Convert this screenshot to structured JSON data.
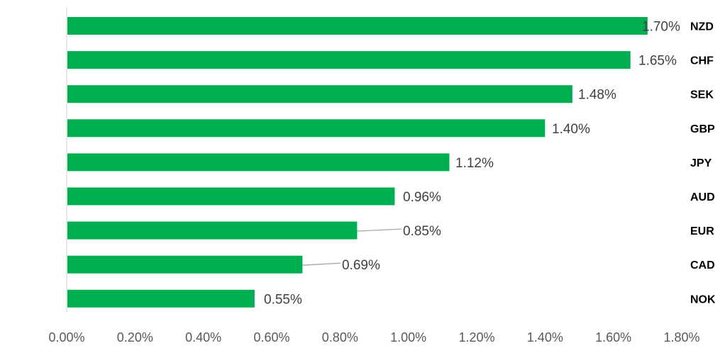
{
  "chart_data": {
    "type": "bar",
    "orientation": "horizontal",
    "categories": [
      "NZD",
      "CHF",
      "SEK",
      "GBP",
      "JPY",
      "AUD",
      "EUR",
      "CAD",
      "NOK"
    ],
    "values": [
      1.7,
      1.65,
      1.48,
      1.4,
      1.12,
      0.96,
      0.85,
      0.69,
      0.55
    ],
    "data_labels": [
      "1.70%",
      "1.65%",
      "1.48%",
      "1.40%",
      "1.12%",
      "0.96%",
      "0.85%",
      "0.69%",
      "0.55%"
    ],
    "x_ticks": [
      0,
      0.2,
      0.4,
      0.6,
      0.8,
      1.0,
      1.2,
      1.4,
      1.6,
      1.8
    ],
    "x_tick_labels": [
      "0.00%",
      "0.20%",
      "0.40%",
      "0.60%",
      "0.80%",
      "1.00%",
      "1.20%",
      "1.40%",
      "1.60%",
      "1.80%"
    ],
    "xlim": [
      0,
      1.8
    ],
    "title": "",
    "xlabel": "",
    "ylabel": "",
    "grid": false,
    "legend": "none",
    "bar_color": "#00B050",
    "category_label_position": "right"
  }
}
